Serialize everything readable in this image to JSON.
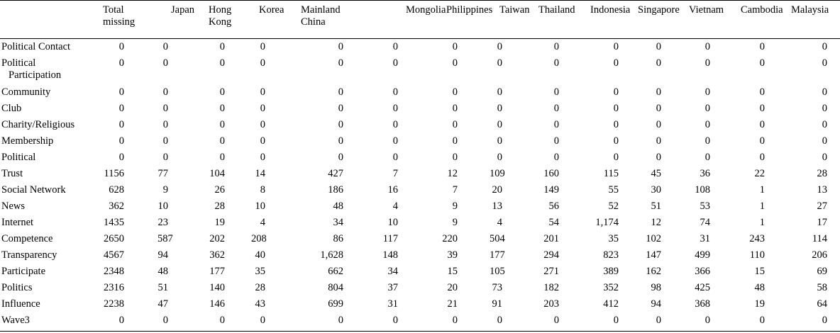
{
  "header": {
    "columns": [
      "",
      "Total missing",
      "Japan",
      "Hong Kong",
      "Korea",
      "Mainland China",
      "Mongolia",
      "Philippines",
      "Taiwan",
      "Thailand",
      "Indonesia",
      "Singapore",
      "Vietnam",
      "Cambodia",
      "Malaysia"
    ],
    "columns_lines": [
      [
        ""
      ],
      [
        "Total",
        "missing"
      ],
      [
        "Japan"
      ],
      [
        "Hong",
        "Kong"
      ],
      [
        "Korea"
      ],
      [
        "Mainland",
        "China"
      ],
      [
        "Mongolia"
      ],
      [
        "Philippines"
      ],
      [
        "Taiwan"
      ],
      [
        "Thailand"
      ],
      [
        "Indonesia"
      ],
      [
        "Singapore"
      ],
      [
        "Vietnam"
      ],
      [
        "Cambodia"
      ],
      [
        "Malaysia"
      ]
    ]
  },
  "rows": [
    {
      "label": "Political Contact",
      "values": [
        "0",
        "0",
        "0",
        "0",
        "0",
        "0",
        "0",
        "0",
        "0",
        "0",
        "0",
        "0",
        "0",
        "0"
      ]
    },
    {
      "label": "Political Participation",
      "label_lines": [
        "Political",
        "Participation"
      ],
      "values": [
        "0",
        "0",
        "0",
        "0",
        "0",
        "0",
        "0",
        "0",
        "0",
        "0",
        "0",
        "0",
        "0",
        "0"
      ]
    },
    {
      "label": "Community",
      "values": [
        "0",
        "0",
        "0",
        "0",
        "0",
        "0",
        "0",
        "0",
        "0",
        "0",
        "0",
        "0",
        "0",
        "0"
      ]
    },
    {
      "label": "Club",
      "values": [
        "0",
        "0",
        "0",
        "0",
        "0",
        "0",
        "0",
        "0",
        "0",
        "0",
        "0",
        "0",
        "0",
        "0"
      ]
    },
    {
      "label": "Charity/Religious",
      "values": [
        "0",
        "0",
        "0",
        "0",
        "0",
        "0",
        "0",
        "0",
        "0",
        "0",
        "0",
        "0",
        "0",
        "0"
      ]
    },
    {
      "label": "Membership",
      "values": [
        "0",
        "0",
        "0",
        "0",
        "0",
        "0",
        "0",
        "0",
        "0",
        "0",
        "0",
        "0",
        "0",
        "0"
      ]
    },
    {
      "label": "Political",
      "values": [
        "0",
        "0",
        "0",
        "0",
        "0",
        "0",
        "0",
        "0",
        "0",
        "0",
        "0",
        "0",
        "0",
        "0"
      ]
    },
    {
      "label": "Trust",
      "values": [
        "1156",
        "77",
        "104",
        "14",
        "427",
        "7",
        "12",
        "109",
        "160",
        "115",
        "45",
        "36",
        "22",
        "28"
      ]
    },
    {
      "label": "Social Network",
      "values": [
        "628",
        "9",
        "26",
        "8",
        "186",
        "16",
        "7",
        "20",
        "149",
        "55",
        "30",
        "108",
        "1",
        "13"
      ]
    },
    {
      "label": "News",
      "values": [
        "362",
        "10",
        "28",
        "10",
        "48",
        "4",
        "9",
        "13",
        "56",
        "52",
        "51",
        "53",
        "1",
        "27"
      ]
    },
    {
      "label": "Internet",
      "values": [
        "1435",
        "23",
        "19",
        "4",
        "34",
        "10",
        "9",
        "4",
        "54",
        "1,174",
        "12",
        "74",
        "1",
        "17"
      ]
    },
    {
      "label": "Competence",
      "values": [
        "2650",
        "587",
        "202",
        "208",
        "86",
        "117",
        "220",
        "504",
        "201",
        "35",
        "102",
        "31",
        "243",
        "114"
      ]
    },
    {
      "label": "Transparency",
      "values": [
        "4567",
        "94",
        "362",
        "40",
        "1,628",
        "148",
        "39",
        "177",
        "294",
        "823",
        "147",
        "499",
        "110",
        "206"
      ]
    },
    {
      "label": "Participate",
      "values": [
        "2348",
        "48",
        "177",
        "35",
        "662",
        "34",
        "15",
        "105",
        "271",
        "389",
        "162",
        "366",
        "15",
        "69"
      ]
    },
    {
      "label": "Politics",
      "values": [
        "2316",
        "51",
        "140",
        "28",
        "804",
        "37",
        "20",
        "73",
        "182",
        "352",
        "98",
        "425",
        "48",
        "58"
      ]
    },
    {
      "label": "Influence",
      "values": [
        "2238",
        "47",
        "146",
        "43",
        "699",
        "31",
        "21",
        "91",
        "203",
        "412",
        "94",
        "368",
        "19",
        "64"
      ]
    },
    {
      "label": "Wave3",
      "values": [
        "0",
        "0",
        "0",
        "0",
        "0",
        "0",
        "0",
        "0",
        "0",
        "0",
        "0",
        "0",
        "0",
        "0"
      ]
    }
  ]
}
